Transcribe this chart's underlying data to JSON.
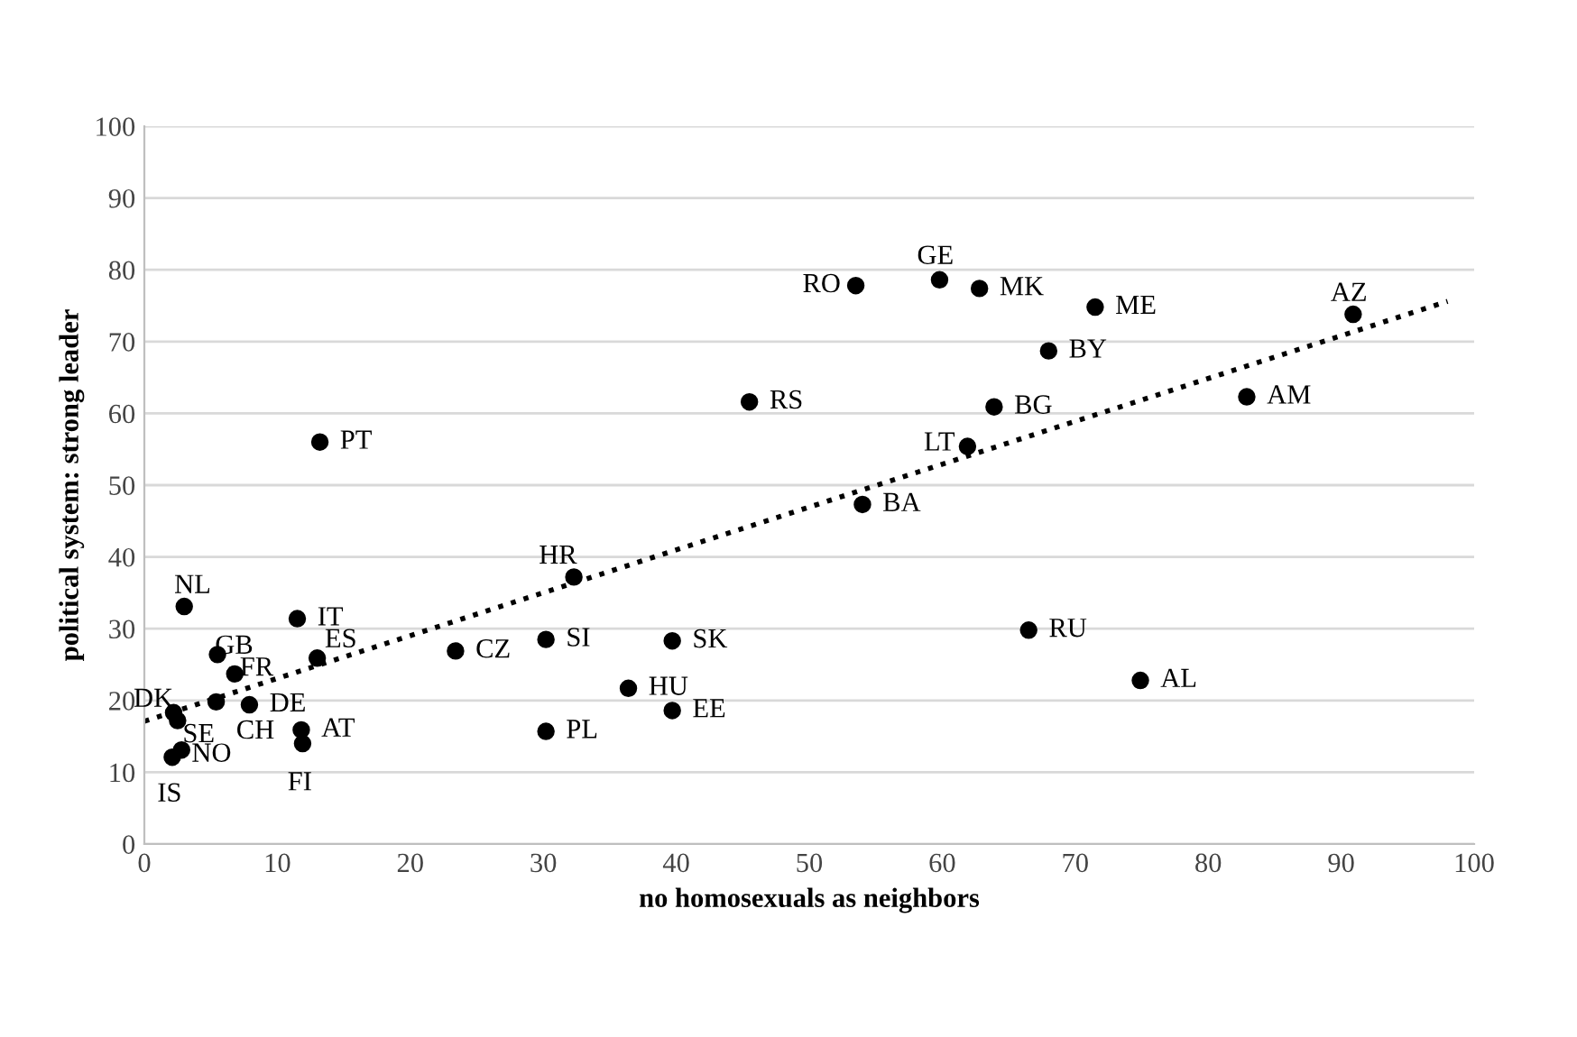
{
  "chart_data": {
    "type": "scatter",
    "xlabel": "no homosexuals as neighbors",
    "ylabel": "political system: strong leader",
    "xlim": [
      0,
      100
    ],
    "xticks": [
      0,
      10,
      20,
      30,
      40,
      50,
      60,
      70,
      80,
      90,
      100
    ],
    "ylim": [
      0,
      100
    ],
    "yticks": [
      0,
      10,
      20,
      30,
      40,
      50,
      60,
      70,
      80,
      90,
      100
    ],
    "grid": "y",
    "legend": false,
    "marker": "circle",
    "series": [
      {
        "color": "#000000",
        "x": [
          3.0,
          13.2,
          11.5,
          5.5,
          6.8,
          13.0,
          2.2,
          2.5,
          5.4,
          7.9,
          11.8,
          11.9,
          2.8,
          2.1,
          23.4,
          30.2,
          30.2,
          32.3,
          36.4,
          39.7,
          39.7,
          45.5,
          53.5,
          54.0,
          59.8,
          61.9,
          62.8,
          63.9,
          66.5,
          68.0,
          71.5,
          74.9,
          82.9,
          90.9
        ],
        "values": [
          33.1,
          56.0,
          31.4,
          26.4,
          23.7,
          25.9,
          18.3,
          17.2,
          19.8,
          19.4,
          15.9,
          14.0,
          13.1,
          12.1,
          26.9,
          28.5,
          15.7,
          37.2,
          21.7,
          28.3,
          18.6,
          61.6,
          77.8,
          47.3,
          78.6,
          55.4,
          77.4,
          60.9,
          29.8,
          68.7,
          74.8,
          22.8,
          62.3,
          73.8
        ]
      },
      {
        "type": "line",
        "color": "#000000",
        "line_style": "dotted",
        "marker": "none",
        "x": [
          0,
          98
        ],
        "values": [
          17.1,
          75.6
        ]
      }
    ],
    "annotations": [
      {
        "text": "NL",
        "x": 3.0,
        "y": 33.1
      },
      {
        "text": "PT",
        "x": 13.2,
        "y": 56.0
      },
      {
        "text": "IT",
        "x": 11.5,
        "y": 31.4
      },
      {
        "text": "GB",
        "x": 5.5,
        "y": 26.4
      },
      {
        "text": "FR",
        "x": 6.8,
        "y": 23.7
      },
      {
        "text": "ES",
        "x": 13.0,
        "y": 25.9
      },
      {
        "text": "DK",
        "x": 2.2,
        "y": 18.3
      },
      {
        "text": "SE",
        "x": 2.5,
        "y": 17.2
      },
      {
        "text": "CH",
        "x": 5.4,
        "y": 19.8
      },
      {
        "text": "DE",
        "x": 7.9,
        "y": 19.4
      },
      {
        "text": "AT",
        "x": 11.8,
        "y": 15.9
      },
      {
        "text": "FI",
        "x": 11.9,
        "y": 14.0
      },
      {
        "text": "NO",
        "x": 2.8,
        "y": 13.1
      },
      {
        "text": "IS",
        "x": 2.1,
        "y": 12.1
      },
      {
        "text": "CZ",
        "x": 23.4,
        "y": 26.9
      },
      {
        "text": "SI",
        "x": 30.2,
        "y": 28.5
      },
      {
        "text": "PL",
        "x": 30.2,
        "y": 15.7
      },
      {
        "text": "HR",
        "x": 32.3,
        "y": 37.2
      },
      {
        "text": "HU",
        "x": 36.4,
        "y": 21.7
      },
      {
        "text": "SK",
        "x": 39.7,
        "y": 28.3
      },
      {
        "text": "EE",
        "x": 39.7,
        "y": 18.6
      },
      {
        "text": "RS",
        "x": 45.5,
        "y": 61.6
      },
      {
        "text": "RO",
        "x": 53.5,
        "y": 77.8
      },
      {
        "text": "BA",
        "x": 54.0,
        "y": 47.3
      },
      {
        "text": "GE",
        "x": 59.8,
        "y": 78.6
      },
      {
        "text": "LT",
        "x": 61.9,
        "y": 55.4
      },
      {
        "text": "MK",
        "x": 62.8,
        "y": 77.4
      },
      {
        "text": "BG",
        "x": 63.9,
        "y": 60.9
      },
      {
        "text": "RU",
        "x": 66.5,
        "y": 29.8
      },
      {
        "text": "BY",
        "x": 68.0,
        "y": 68.7
      },
      {
        "text": "ME",
        "x": 71.5,
        "y": 74.8
      },
      {
        "text": "AL",
        "x": 74.9,
        "y": 22.8
      },
      {
        "text": "AM",
        "x": 82.9,
        "y": 62.3
      },
      {
        "text": "AZ",
        "x": 90.9,
        "y": 73.8
      }
    ]
  }
}
